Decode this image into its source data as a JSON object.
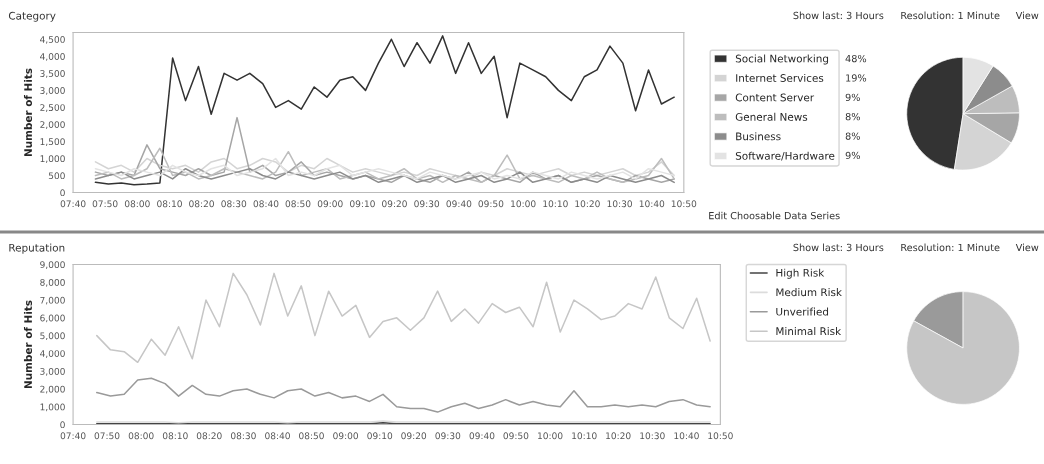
{
  "chart_data": [
    {
      "type": "line",
      "title": "Category",
      "ylabel": "Number of Hits",
      "annotations": [
        "Show last: 3 Hours",
        "Resolution: 1 Minute",
        "View",
        "Edit Choosable Data Series"
      ],
      "x": [
        7.783,
        7.85,
        7.917,
        7.983,
        8.05,
        8.117,
        8.183,
        8.25,
        8.317,
        8.383,
        8.45,
        8.517,
        8.583,
        8.65,
        8.717,
        8.783,
        8.85,
        8.917,
        8.983,
        9.05,
        9.117,
        9.183,
        9.25,
        9.317,
        9.383,
        9.45,
        9.517,
        9.583,
        9.65,
        9.717,
        9.783,
        9.85,
        9.917,
        9.983,
        10.05,
        10.117,
        10.183,
        10.25,
        10.317,
        10.383,
        10.45,
        10.517,
        10.583,
        10.65,
        10.717,
        10.783
      ],
      "xlim": [
        7.667,
        10.833
      ],
      "xticks": [
        {
          "value": 7.667,
          "label": "07:40"
        },
        {
          "value": 7.833,
          "label": "07:50"
        },
        {
          "value": 8,
          "label": "08:00"
        },
        {
          "value": 8.167,
          "label": "08:10"
        },
        {
          "value": 8.333,
          "label": "08:20"
        },
        {
          "value": 8.5,
          "label": "08:30"
        },
        {
          "value": 8.667,
          "label": "08:40"
        },
        {
          "value": 8.833,
          "label": "08:50"
        },
        {
          "value": 9,
          "label": "09:00"
        },
        {
          "value": 9.167,
          "label": "09:10"
        },
        {
          "value": 9.333,
          "label": "09:20"
        },
        {
          "value": 9.5,
          "label": "09:30"
        },
        {
          "value": 9.667,
          "label": "09:40"
        },
        {
          "value": 9.833,
          "label": "09:50"
        },
        {
          "value": 10,
          "label": "10:00"
        },
        {
          "value": 10.167,
          "label": "10:10"
        },
        {
          "value": 10.333,
          "label": "10:20"
        },
        {
          "value": 10.5,
          "label": "10:30"
        },
        {
          "value": 10.667,
          "label": "10:40"
        },
        {
          "value": 10.833,
          "label": "10:50"
        }
      ],
      "ylim": [
        0,
        4700
      ],
      "yticks": [
        0,
        500,
        {
          "value": 1000,
          "label": "1,000"
        },
        {
          "value": 1500,
          "label": "1,500"
        },
        {
          "value": 2000,
          "label": "2,000"
        },
        {
          "value": 2500,
          "label": "2,500"
        },
        {
          "value": 3000,
          "label": "3,000"
        },
        {
          "value": 3500,
          "label": "3,500"
        },
        {
          "value": 4000,
          "label": "4,000"
        },
        {
          "value": 4500,
          "label": "4,500"
        }
      ],
      "series": [
        {
          "color": "#333333",
          "values": [
            300,
            250,
            280,
            230,
            250,
            280,
            3950,
            2700,
            3700,
            2300,
            3500,
            3300,
            3500,
            3200,
            2500,
            2700,
            2450,
            3100,
            2800,
            3300,
            3400,
            3000,
            3800,
            4500,
            3700,
            4400,
            3800,
            4600,
            3500,
            4400,
            3500,
            4000,
            2200,
            3800,
            3600,
            3400,
            3000,
            2700,
            3400,
            3600,
            4300,
            3800,
            2400,
            3600,
            2600,
            2800
          ]
        },
        {
          "color": "#d4d4d4",
          "values": [
            900,
            700,
            800,
            600,
            1000,
            800,
            700,
            800,
            600,
            900,
            1000,
            700,
            800,
            1000,
            900,
            600,
            800,
            700,
            1000,
            800,
            600,
            700,
            600,
            500,
            600,
            500,
            700,
            600,
            500,
            400,
            600,
            500,
            700,
            600,
            500,
            600,
            700,
            500,
            600,
            500,
            600,
            700,
            500,
            600,
            900,
            500
          ]
        },
        {
          "color": "#a6a6a6",
          "values": [
            600,
            500,
            600,
            500,
            1400,
            700,
            600,
            500,
            700,
            500,
            600,
            2200,
            600,
            800,
            500,
            600,
            900,
            500,
            600,
            500,
            400,
            500,
            400,
            300,
            500,
            400,
            300,
            500,
            400,
            600,
            300,
            500,
            400,
            300,
            600,
            400,
            500,
            300,
            400,
            500,
            400,
            300,
            500,
            400,
            300,
            400
          ]
        },
        {
          "color": "#bdbdbd",
          "values": [
            500,
            600,
            400,
            500,
            700,
            1300,
            500,
            600,
            400,
            500,
            700,
            600,
            500,
            400,
            600,
            1200,
            500,
            600,
            700,
            400,
            500,
            600,
            400,
            500,
            700,
            400,
            500,
            300,
            500,
            400,
            300,
            500,
            1100,
            400,
            500,
            400,
            300,
            500,
            400,
            600,
            400,
            300,
            400,
            500,
            1000,
            400
          ]
        },
        {
          "color": "#8c8c8c",
          "values": [
            400,
            500,
            600,
            400,
            500,
            600,
            400,
            700,
            500,
            400,
            500,
            600,
            700,
            500,
            400,
            600,
            500,
            400,
            500,
            600,
            400,
            500,
            300,
            400,
            500,
            300,
            400,
            500,
            300,
            400,
            500,
            300,
            400,
            600,
            300,
            400,
            500,
            300,
            400,
            300,
            500,
            400,
            300,
            400,
            500,
            300
          ]
        },
        {
          "color": "#e3e3e3",
          "values": [
            700,
            600,
            500,
            700,
            600,
            500,
            800,
            600,
            500,
            700,
            800,
            500,
            600,
            700,
            1000,
            500,
            600,
            500,
            700,
            800,
            500,
            600,
            700,
            600,
            500,
            400,
            600,
            500,
            400,
            500,
            600,
            400,
            500,
            400,
            600,
            500,
            400,
            600,
            500,
            400,
            500,
            600,
            400,
            700,
            600,
            500
          ]
        }
      ]
    },
    {
      "type": "pie",
      "categories": [
        "Social Networking",
        "Internet Services",
        "Content Server",
        "General News",
        "Business",
        "Software/Hardware"
      ],
      "values": [
        48,
        19,
        9,
        8,
        8,
        9
      ],
      "legend": "left",
      "colors": [
        "#333333",
        "#d4d4d4",
        "#a6a6a6",
        "#bdbdbd",
        "#8c8c8c",
        "#e3e3e3"
      ],
      "value_labels": [
        "48%",
        "19%",
        "9%",
        "8%",
        "8%",
        "9%"
      ]
    },
    {
      "type": "line",
      "title": "Reputation",
      "ylabel": "Number of Hits",
      "annotations": [
        "Show last: 3 Hours",
        "Resolution: 1 Minute",
        "View"
      ],
      "x": [
        7.783,
        7.85,
        7.917,
        7.983,
        8.05,
        8.117,
        8.183,
        8.25,
        8.317,
        8.383,
        8.45,
        8.517,
        8.583,
        8.65,
        8.717,
        8.783,
        8.85,
        8.917,
        8.983,
        9.05,
        9.117,
        9.183,
        9.25,
        9.317,
        9.383,
        9.45,
        9.517,
        9.583,
        9.65,
        9.717,
        9.783,
        9.85,
        9.917,
        9.983,
        10.05,
        10.117,
        10.183,
        10.25,
        10.317,
        10.383,
        10.45,
        10.517,
        10.583,
        10.65,
        10.717,
        10.783
      ],
      "xlim": [
        7.667,
        10.833
      ],
      "xticks": [
        {
          "value": 7.667,
          "label": "07:40"
        },
        {
          "value": 7.833,
          "label": "07:50"
        },
        {
          "value": 8,
          "label": "08:00"
        },
        {
          "value": 8.167,
          "label": "08:10"
        },
        {
          "value": 8.333,
          "label": "08:20"
        },
        {
          "value": 8.5,
          "label": "08:30"
        },
        {
          "value": 8.667,
          "label": "08:40"
        },
        {
          "value": 8.833,
          "label": "08:50"
        },
        {
          "value": 9,
          "label": "09:00"
        },
        {
          "value": 9.167,
          "label": "09:10"
        },
        {
          "value": 9.333,
          "label": "09:20"
        },
        {
          "value": 9.5,
          "label": "09:30"
        },
        {
          "value": 9.667,
          "label": "09:40"
        },
        {
          "value": 9.833,
          "label": "09:50"
        },
        {
          "value": 10,
          "label": "10:00"
        },
        {
          "value": 10.167,
          "label": "10:10"
        },
        {
          "value": 10.333,
          "label": "10:20"
        },
        {
          "value": 10.5,
          "label": "10:30"
        },
        {
          "value": 10.667,
          "label": "10:40"
        },
        {
          "value": 10.833,
          "label": "10:50"
        }
      ],
      "ylim": [
        0,
        9000
      ],
      "yticks": [
        0,
        {
          "value": 1000,
          "label": "1,000"
        },
        {
          "value": 2000,
          "label": "2,000"
        },
        {
          "value": 3000,
          "label": "3,000"
        },
        {
          "value": 4000,
          "label": "4,000"
        },
        {
          "value": 5000,
          "label": "5,000"
        },
        {
          "value": 6000,
          "label": "6,000"
        },
        {
          "value": 7000,
          "label": "7,000"
        },
        {
          "value": 8000,
          "label": "8,000"
        },
        {
          "value": 9000,
          "label": "9,000"
        }
      ],
      "legend": "right",
      "series": [
        {
          "name": "High Risk",
          "color": "#444444",
          "values": [
            50,
            50,
            50,
            50,
            50,
            50,
            50,
            50,
            50,
            50,
            50,
            50,
            50,
            50,
            50,
            50,
            50,
            50,
            50,
            50,
            50,
            100,
            50,
            50,
            50,
            50,
            50,
            50,
            50,
            50,
            50,
            50,
            50,
            50,
            50,
            50,
            50,
            50,
            50,
            50,
            50,
            50,
            50,
            50,
            50,
            50
          ]
        },
        {
          "name": "Medium Risk",
          "color": "#dcdcdc",
          "values": [
            150,
            150,
            150,
            150,
            150,
            150,
            100,
            150,
            150,
            150,
            150,
            150,
            150,
            150,
            100,
            150,
            150,
            150,
            150,
            150,
            150,
            200,
            150,
            150,
            150,
            150,
            150,
            150,
            150,
            150,
            150,
            150,
            150,
            150,
            150,
            150,
            150,
            150,
            150,
            150,
            150,
            150,
            150,
            150,
            150,
            150
          ]
        },
        {
          "name": "Unverified",
          "color": "#9a9a9a",
          "values": [
            1800,
            1600,
            1700,
            2500,
            2600,
            2300,
            1600,
            2200,
            1700,
            1600,
            1900,
            2000,
            1700,
            1500,
            1900,
            2000,
            1600,
            1800,
            1500,
            1600,
            1300,
            1700,
            1000,
            900,
            900,
            700,
            1000,
            1200,
            900,
            1100,
            1400,
            1100,
            1300,
            1100,
            1000,
            1900,
            1000,
            1000,
            1100,
            1000,
            1100,
            1000,
            1300,
            1400,
            1100,
            1000
          ]
        },
        {
          "name": "Minimal Risk",
          "color": "#c6c6c6",
          "values": [
            5000,
            4200,
            4100,
            3500,
            4800,
            3900,
            5500,
            3700,
            7000,
            5500,
            8500,
            7300,
            5600,
            8500,
            6100,
            7800,
            5000,
            7500,
            6100,
            6700,
            4900,
            5800,
            6000,
            5300,
            6000,
            7500,
            5800,
            6500,
            5700,
            6800,
            6300,
            6600,
            5500,
            8000,
            5200,
            7000,
            6500,
            5900,
            6100,
            6800,
            6500,
            8300,
            6000,
            5400,
            7100,
            4700
          ]
        }
      ]
    },
    {
      "type": "pie",
      "categories": [
        null,
        null
      ],
      "values": [
        17,
        83
      ],
      "colors": [
        "#9a9a9a",
        "#c6c6c6"
      ]
    }
  ]
}
